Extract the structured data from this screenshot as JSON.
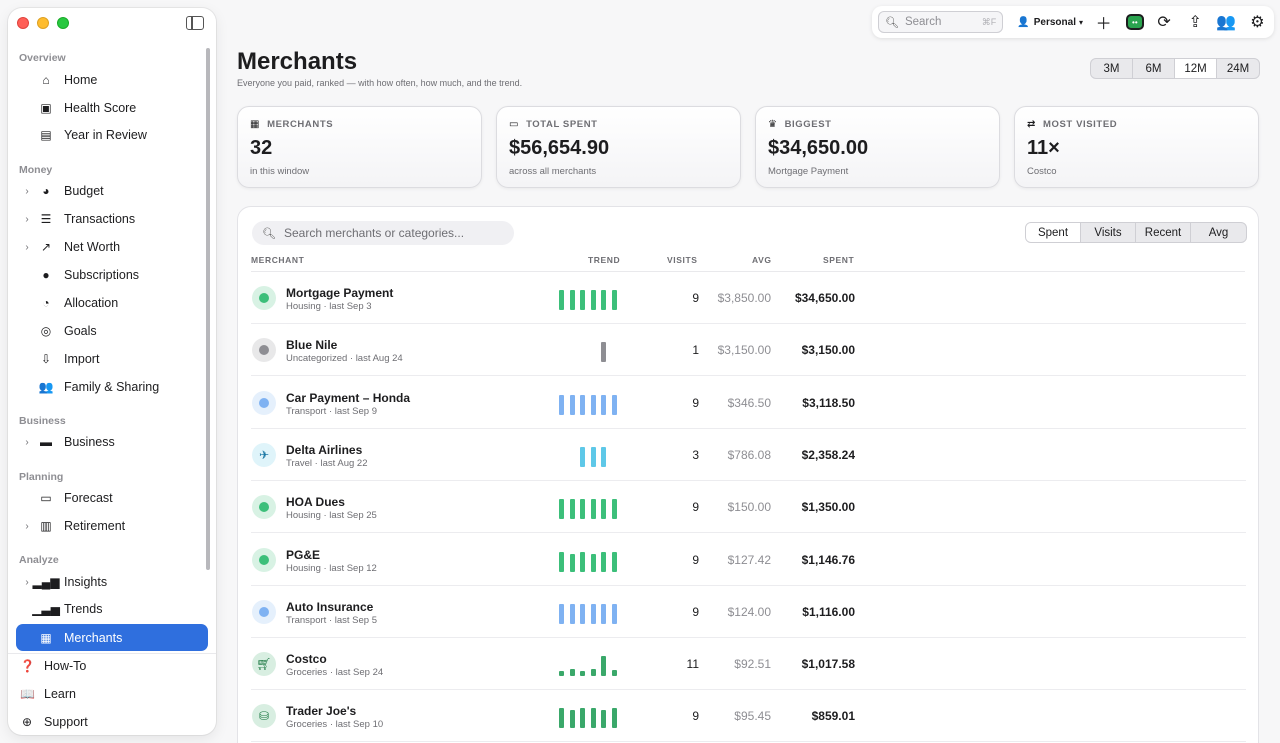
{
  "sidebar": {
    "sections": {
      "overview": "Overview",
      "money": "Money",
      "business": "Business",
      "planning": "Planning",
      "analyze": "Analyze"
    },
    "items": {
      "home": "Home",
      "health_score": "Health Score",
      "year_in_review": "Year in Review",
      "budget": "Budget",
      "transactions": "Transactions",
      "net_worth": "Net Worth",
      "subscriptions": "Subscriptions",
      "allocation": "Allocation",
      "goals": "Goals",
      "import": "Import",
      "family": "Family & Sharing",
      "business": "Business",
      "forecast": "Forecast",
      "retirement": "Retirement",
      "insights": "Insights",
      "trends": "Trends",
      "merchants": "Merchants"
    },
    "bottom": {
      "howto": "How-To",
      "learn": "Learn",
      "support": "Support"
    }
  },
  "toolbar": {
    "search_placeholder": "Search",
    "search_shortcut": "⌘F",
    "profile": "Personal"
  },
  "page": {
    "title": "Merchants",
    "subtitle": "Everyone you paid, ranked — with how often, how much, and the trend."
  },
  "ranges": [
    "3M",
    "6M",
    "12M",
    "24M"
  ],
  "selected_range": "12M",
  "stats": [
    {
      "label": "MERCHANTS",
      "value": "32",
      "sub": "in this window"
    },
    {
      "label": "TOTAL SPENT",
      "value": "$56,654.90",
      "sub": "across all merchants"
    },
    {
      "label": "BIGGEST",
      "value": "$34,650.00",
      "sub": "Mortgage Payment"
    },
    {
      "label": "MOST VISITED",
      "value": "11×",
      "sub": "Costco"
    }
  ],
  "table": {
    "search_placeholder": "Search merchants or categories...",
    "sort_options": [
      "Spent",
      "Visits",
      "Recent",
      "Avg"
    ],
    "selected_sort": "Spent",
    "columns": {
      "merchant": "MERCHANT",
      "trend": "TREND",
      "visits": "VISITS",
      "avg": "AVG",
      "spent": "SPENT"
    },
    "rows": [
      {
        "name": "Mortgage Payment",
        "meta": "Housing · last Sep 3",
        "visits": "9",
        "avg": "$3,850.00",
        "spent": "$34,650.00",
        "color": "#3cbf7a",
        "icon": "dot",
        "trend": [
          1,
          1,
          1,
          1,
          1,
          1
        ]
      },
      {
        "name": "Blue Nile",
        "meta": "Uncategorized · last Aug 24",
        "visits": "1",
        "avg": "$3,150.00",
        "spent": "$3,150.00",
        "color": "#8e8e93",
        "icon": "dot",
        "trend": [
          0,
          0,
          0,
          0,
          1,
          0
        ]
      },
      {
        "name": "Car Payment – Honda",
        "meta": "Transport · last Sep 9",
        "visits": "9",
        "avg": "$346.50",
        "spent": "$3,118.50",
        "color": "#7fb2f2",
        "icon": "dot",
        "trend": [
          1,
          1,
          1,
          1,
          1,
          1
        ]
      },
      {
        "name": "Delta Airlines",
        "meta": "Travel · last Aug 22",
        "visits": "3",
        "avg": "$786.08",
        "spent": "$2,358.24",
        "color": "#5ec8e8",
        "icon": "airplane-icon",
        "trend": [
          0,
          0,
          1,
          1,
          1,
          0
        ]
      },
      {
        "name": "HOA Dues",
        "meta": "Housing · last Sep 25",
        "visits": "9",
        "avg": "$150.00",
        "spent": "$1,350.00",
        "color": "#3cbf7a",
        "icon": "dot",
        "trend": [
          1,
          1,
          1,
          1,
          1,
          1
        ]
      },
      {
        "name": "PG&E",
        "meta": "Housing · last Sep 12",
        "visits": "9",
        "avg": "$127.42",
        "spent": "$1,146.76",
        "color": "#3cbf7a",
        "icon": "dot",
        "trend": [
          1,
          0.9,
          1,
          0.9,
          1,
          1
        ]
      },
      {
        "name": "Auto Insurance",
        "meta": "Transport · last Sep 5",
        "visits": "9",
        "avg": "$124.00",
        "spent": "$1,116.00",
        "color": "#7fb2f2",
        "icon": "dot",
        "trend": [
          1,
          1,
          1,
          1,
          1,
          1
        ]
      },
      {
        "name": "Costco",
        "meta": "Groceries · last Sep 24",
        "visits": "11",
        "avg": "$92.51",
        "spent": "$1,017.58",
        "color": "#3aa86a",
        "icon": "cart-icon",
        "trend": [
          0.25,
          0.35,
          0.25,
          0.35,
          1,
          0.3
        ]
      },
      {
        "name": "Trader Joe's",
        "meta": "Groceries · last Sep 10",
        "visits": "9",
        "avg": "$95.45",
        "spent": "$859.01",
        "color": "#3aa86a",
        "icon": "basket-icon",
        "trend": [
          1,
          0.9,
          1,
          1,
          0.9,
          1
        ]
      }
    ]
  }
}
